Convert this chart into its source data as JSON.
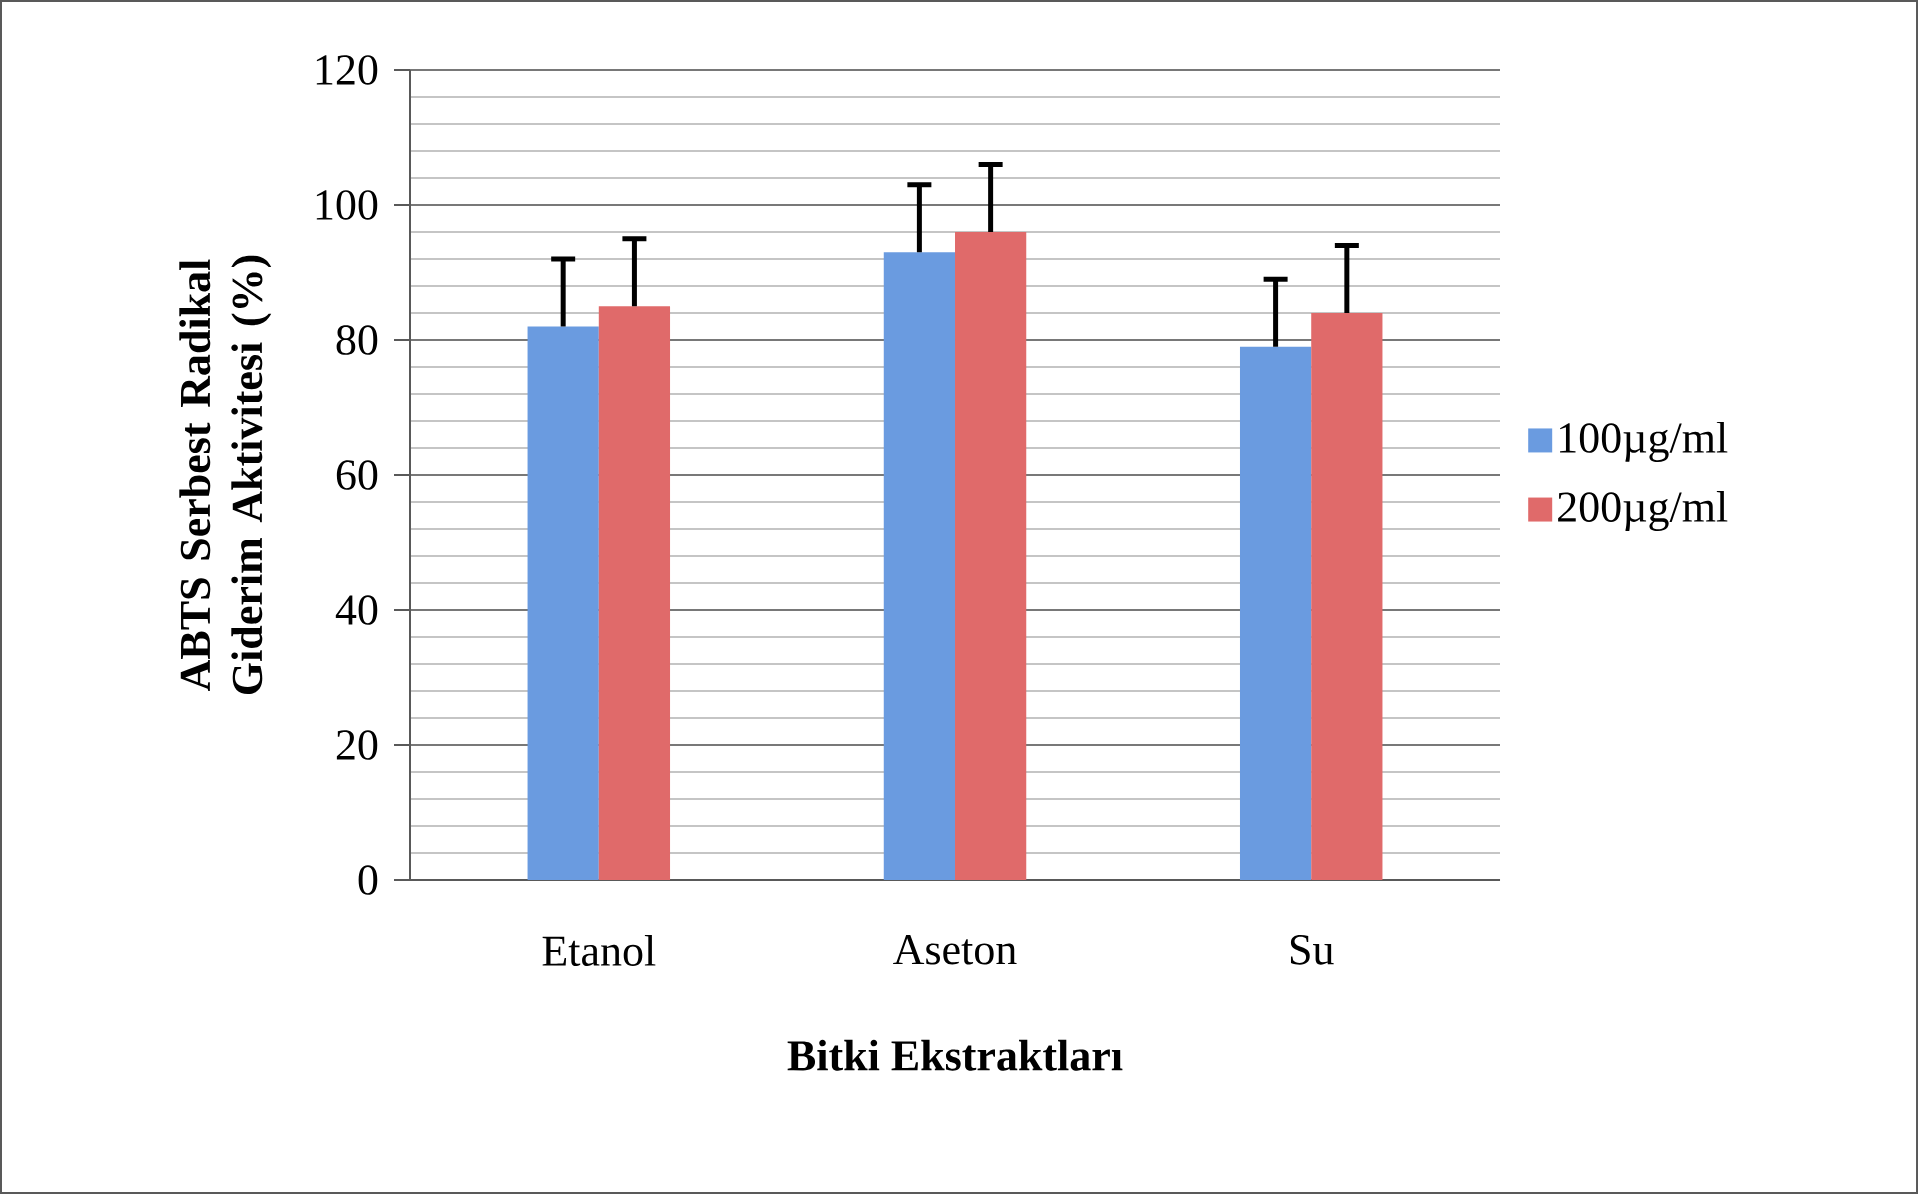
{
  "chart_data": {
    "type": "bar",
    "xlabel": "Bitki Ekstraktları",
    "ylabel": "ABTS Serbest Radikal Giderim Aktivitesi (%)",
    "categories": [
      "Etanol",
      "Aseton",
      "Su"
    ],
    "series": [
      {
        "name": "100µg/ml",
        "color": "#6a9be0",
        "values": [
          82,
          93,
          79
        ],
        "errors": [
          [
            82,
            92
          ],
          [
            93,
            103
          ],
          [
            79,
            89
          ]
        ]
      },
      {
        "name": "200µg/ml",
        "color": "#e06a6a",
        "values": [
          85,
          96,
          84
        ],
        "errors": [
          [
            85,
            95
          ],
          [
            96,
            106
          ],
          [
            84,
            94
          ]
        ]
      }
    ],
    "ylim": [
      0,
      120
    ],
    "yticks": [
      0,
      20,
      40,
      60,
      80,
      100,
      120
    ],
    "grid": "y",
    "legend": "right"
  }
}
